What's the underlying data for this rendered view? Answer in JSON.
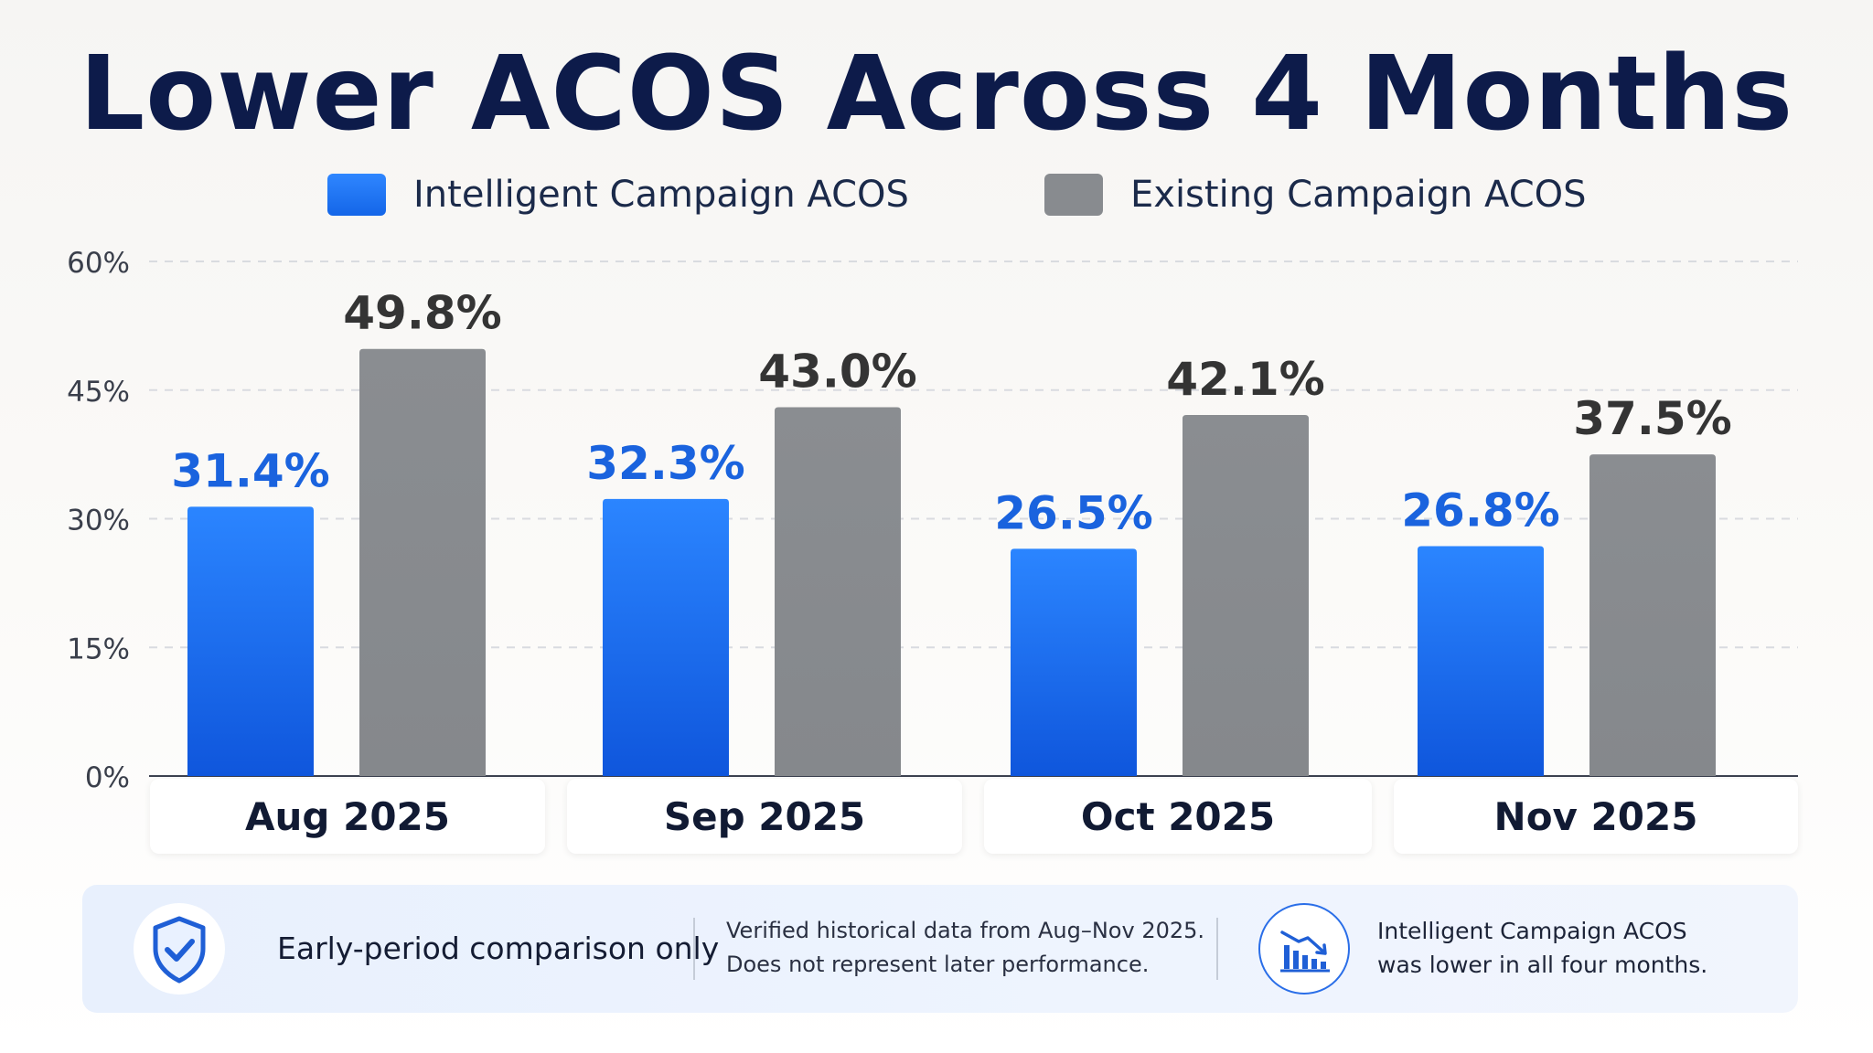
{
  "chart_data": {
    "type": "bar",
    "title": "Lower ACOS Across 4 Months",
    "categories": [
      "Aug 2025",
      "Sep 2025",
      "Oct 2025",
      "Nov 2025"
    ],
    "series": [
      {
        "name": "Intelligent Campaign ACOS",
        "values": [
          31.4,
          32.3,
          26.5,
          26.8
        ],
        "labels": [
          "31.4%",
          "32.3%",
          "26.5%",
          "26.8%"
        ],
        "color": "#1f74f5",
        "label_color": "#1a63de"
      },
      {
        "name": "Existing Campaign ACOS",
        "values": [
          49.8,
          43.0,
          42.1,
          37.5
        ],
        "labels": [
          "49.8%",
          "43.0%",
          "42.1%",
          "37.5%"
        ],
        "color": "#888b8f",
        "label_color": "#343434"
      }
    ],
    "ylim": [
      0,
      60
    ],
    "yticks": [
      0,
      15,
      30,
      45,
      60
    ],
    "ytick_labels": [
      "0%",
      "15%",
      "30%",
      "45%",
      "60%"
    ],
    "xlabel": "",
    "ylabel": "",
    "grid": true,
    "legend_position": "top"
  },
  "footer": {
    "note_title": "Early-period comparison only",
    "note_lines": [
      "Verified historical data from Aug–Nov 2025.",
      "Does not represent later performance."
    ],
    "summary_lines": [
      "Intelligent Campaign ACOS",
      "was lower in all four months."
    ],
    "shield_icon": "shield-check-icon",
    "trend_icon": "bar-chart-down-trend-icon",
    "accent_color": "#1f5fd6"
  }
}
